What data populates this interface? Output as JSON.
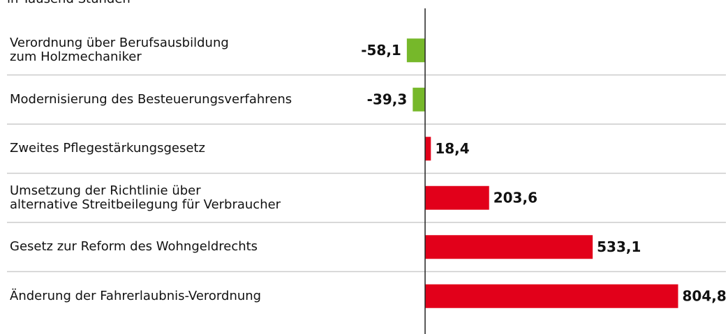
{
  "chart_data": {
    "type": "barh",
    "subtitle": "in Tausend Stunden",
    "categories": [
      "Verordnung über Berufsausbildung\nzum Holzmechaniker",
      "Modernisierung des Besteuerungsverfahrens",
      "Zweites Pflegestärkungsgesetz",
      "Umsetzung der Richtlinie über\nalternative Streitbeilegung für Verbraucher",
      "Gesetz zur Reform des Wohngeldrechts",
      "Änderung der Fahrerlaubnis-Verordnung"
    ],
    "values": [
      -58.1,
      -39.3,
      18.4,
      203.6,
      533.1,
      804.8
    ],
    "value_labels": [
      "-58,1",
      "-39,3",
      "18,4",
      "203,6",
      "533,1",
      "804,8"
    ],
    "negative_color": "#76b82a",
    "positive_color": "#e2001a",
    "xlim": [
      -80,
      805
    ]
  }
}
